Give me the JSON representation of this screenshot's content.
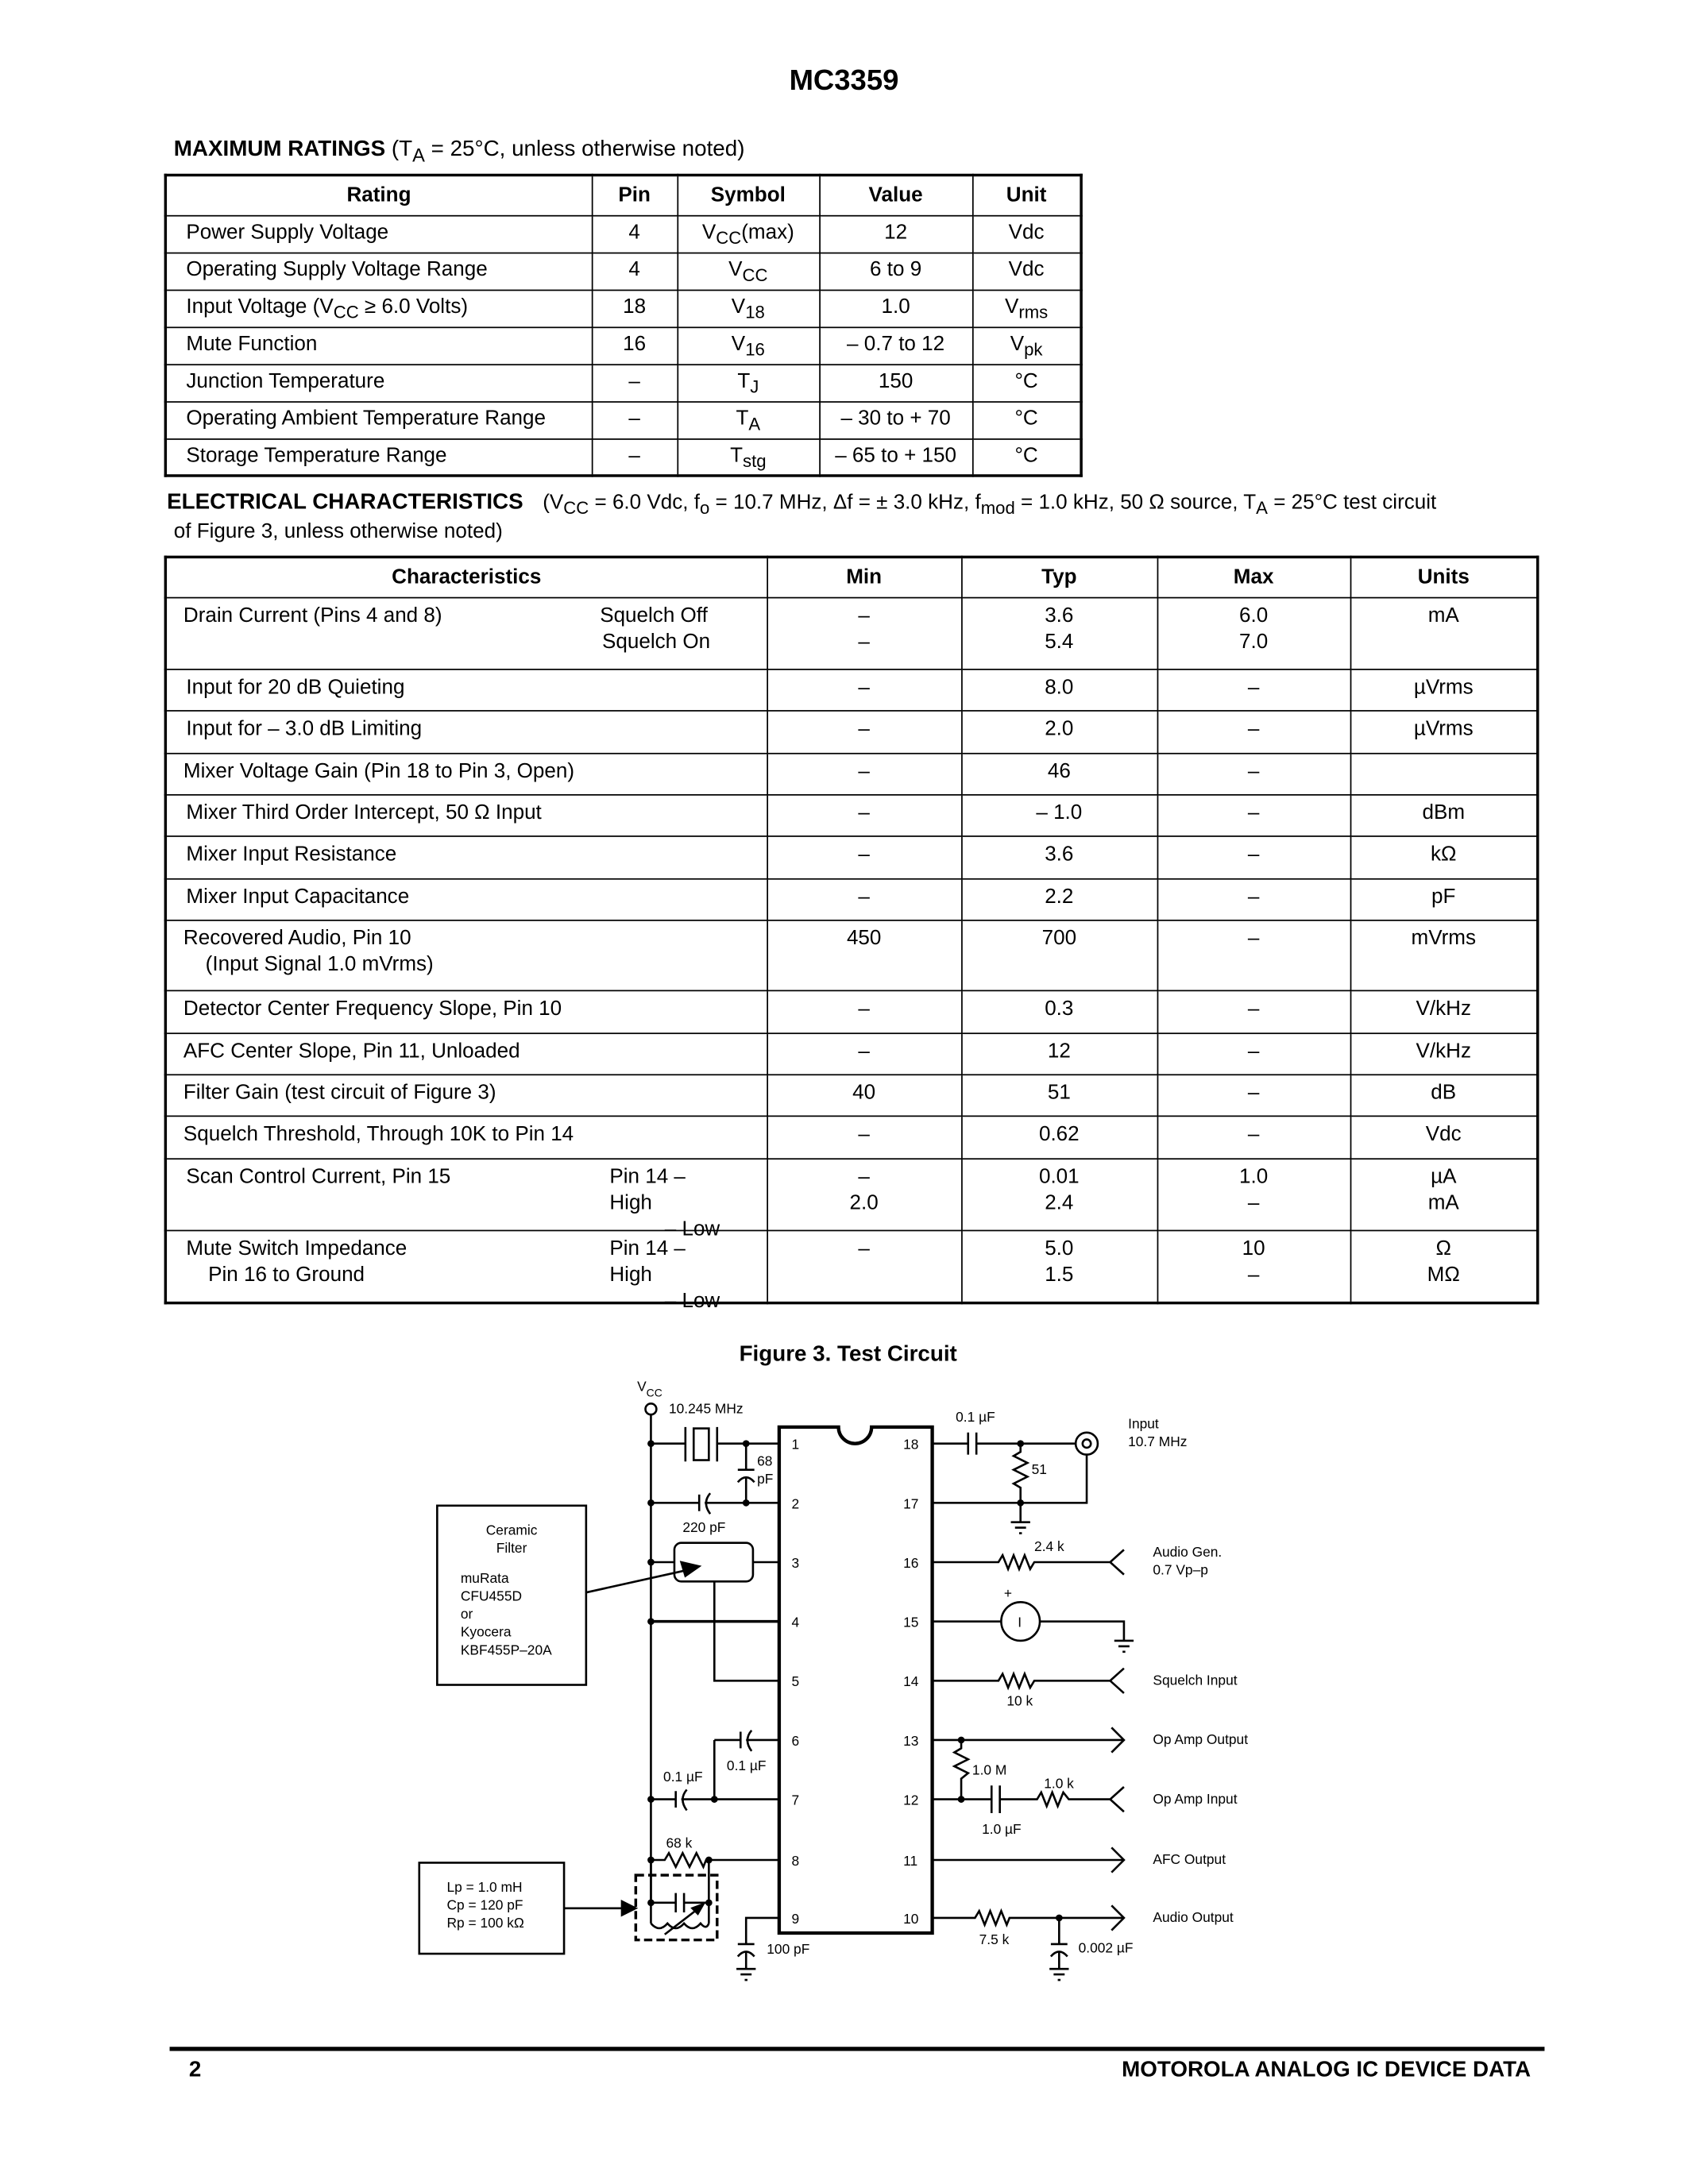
{
  "page_title": "MC3359",
  "max_ratings": {
    "heading": "MAXIMUM RATINGS",
    "cond_pre": "(T",
    "cond_sub": "A",
    "cond_post": " = 25°C, unless otherwise noted)",
    "columns": [
      "Rating",
      "Pin",
      "Symbol",
      "Value",
      "Unit"
    ],
    "rows": [
      {
        "rating": "Power Supply Voltage",
        "pin": "4",
        "sym": "V",
        "sym_sub": "CC",
        "sym_post": "(max)",
        "value": "12",
        "unit": "Vdc",
        "unit_sub": ""
      },
      {
        "rating": "Operating Supply Voltage Range",
        "pin": "4",
        "sym": "V",
        "sym_sub": "CC",
        "sym_post": "",
        "value": "6 to 9",
        "unit": "Vdc",
        "unit_sub": ""
      },
      {
        "rating_pre": "Input Voltage (V",
        "rating_sub": "CC",
        "rating_post": " ≥ 6.0 Volts)",
        "pin": "18",
        "sym": "V",
        "sym_sub": "18",
        "sym_post": "",
        "value": "1.0",
        "unit": "V",
        "unit_sub": "rms"
      },
      {
        "rating": "Mute Function",
        "pin": "16",
        "sym": "V",
        "sym_sub": "16",
        "sym_post": "",
        "value": "– 0.7 to 12",
        "unit": "V",
        "unit_sub": "pk"
      },
      {
        "rating": "Junction Temperature",
        "pin": "–",
        "sym": "T",
        "sym_sub": "J",
        "sym_post": "",
        "value": "150",
        "unit": "°C",
        "unit_sub": ""
      },
      {
        "rating": "Operating Ambient Temperature Range",
        "pin": "–",
        "sym": "T",
        "sym_sub": "A",
        "sym_post": "",
        "value": "– 30 to + 70",
        "unit": "°C",
        "unit_sub": ""
      },
      {
        "rating": "Storage Temperature Range",
        "pin": "–",
        "sym": "T",
        "sym_sub": "stg",
        "sym_post": "",
        "value": "– 65 to + 150",
        "unit": "°C",
        "unit_sub": ""
      }
    ]
  },
  "elec": {
    "heading": "ELECTRICAL CHARACTERISTICS",
    "c1": "(V",
    "c1s": "CC",
    "c2": " = 6.0 Vdc, f",
    "c2s": "o",
    "c3": " = 10.7 MHz, Δf = ± 3.0 kHz, f",
    "c3s": "mod",
    "c4": " = 1.0 kHz, 50 Ω source, T",
    "c4s": "A",
    "c5": " = 25°C test circuit",
    "line2": "of Figure 3, unless otherwise noted)",
    "columns": [
      "Characteristics",
      "Min",
      "Typ",
      "Max",
      "Units"
    ],
    "rows": [
      {
        "name": "Drain Current (Pins 4 and 8)",
        "cond1": "Squelch Off",
        "cond2": "Squelch On",
        "min1": "–",
        "min2": "–",
        "typ1": "3.6",
        "typ2": "5.4",
        "max1": "6.0",
        "max2": "7.0",
        "unit1": "mA",
        "unit2": ""
      },
      {
        "name": "Input for 20 dB Quieting",
        "min1": "–",
        "typ1": "8.0",
        "max1": "–",
        "unit1": "µVrms"
      },
      {
        "name": "Input for – 3.0 dB Limiting",
        "min1": "–",
        "typ1": "2.0",
        "max1": "–",
        "unit1": "µVrms"
      },
      {
        "name": "Mixer Voltage Gain (Pin 18 to Pin 3, Open)",
        "min1": "–",
        "typ1": "46",
        "max1": "–",
        "unit1": ""
      },
      {
        "name": "Mixer Third Order Intercept, 50 Ω Input",
        "min1": "–",
        "typ1": "– 1.0",
        "max1": "–",
        "unit1": "dBm"
      },
      {
        "name": "Mixer Input Resistance",
        "min1": "–",
        "typ1": "3.6",
        "max1": "–",
        "unit1": "kΩ"
      },
      {
        "name": "Mixer Input Capacitance",
        "min1": "–",
        "typ1": "2.2",
        "max1": "–",
        "unit1": "pF"
      },
      {
        "name": "Recovered Audio, Pin 10",
        "name2": "(Input Signal 1.0 mVrms)",
        "min1": "450",
        "typ1": "700",
        "max1": "–",
        "unit1": "mVrms"
      },
      {
        "name": "Detector Center Frequency Slope, Pin 10",
        "min1": "–",
        "typ1": "0.3",
        "max1": "–",
        "unit1": "V/kHz"
      },
      {
        "name": "AFC Center Slope, Pin 11, Unloaded",
        "min1": "–",
        "typ1": "12",
        "max1": "–",
        "unit1": "V/kHz"
      },
      {
        "name": "Filter Gain (test circuit of Figure 3)",
        "min1": "40",
        "typ1": "51",
        "max1": "–",
        "unit1": "dB"
      },
      {
        "name": "Squelch Threshold, Through 10K to Pin 14",
        "min1": "–",
        "typ1": "0.62",
        "max1": "–",
        "unit1": "Vdc"
      },
      {
        "name": "Scan Control Current, Pin 15",
        "cond1": "Pin 14 – High",
        "cond2": "– Low",
        "min1": "–",
        "min2": "2.0",
        "typ1": "0.01",
        "typ2": "2.4",
        "max1": "1.0",
        "max2": "–",
        "unit1": "µA",
        "unit2": "mA"
      },
      {
        "name": "Mute Switch Impedance",
        "name2": "Pin 16 to Ground",
        "cond1": "Pin 14 – High",
        "cond2": "– Low",
        "min1": "–",
        "min2": "",
        "typ1": "5.0",
        "typ2": "1.5",
        "max1": "10",
        "max2": "–",
        "unit1": "Ω",
        "unit2": "MΩ"
      }
    ]
  },
  "figure": {
    "title": "Figure 3. Test Circuit",
    "vcc": "V",
    "vcc_sub": "CC",
    "crystal": "10.245 MHz",
    "c68a": "68",
    "c68b": "pF",
    "c220": "220 pF",
    "ceramic": {
      "l1": "Ceramic",
      "l2": "Filter",
      "l3": "muRata",
      "l4": "CFU455D",
      "l5": "or",
      "l6": "Kyocera",
      "l7": "KBF455P–20A"
    },
    "c6": "0.1 µF",
    "c7": "0.1 µF",
    "r68k": "68 k",
    "lc": {
      "l1": "Lp = 1.0 mH",
      "l2": "Cp = 120 pF",
      "l3": "Rp = 100 kΩ"
    },
    "c100p": "100 pF",
    "left_pins": [
      "1",
      "2",
      "3",
      "4",
      "5",
      "6",
      "7",
      "8",
      "9"
    ],
    "right_pins": [
      "18",
      "17",
      "16",
      "15",
      "14",
      "13",
      "12",
      "11",
      "10"
    ],
    "c18": "0.1 µF",
    "r51": "51",
    "input1": "Input",
    "input2": "10.7 MHz",
    "r24k": "2.4 k",
    "audio_gen1": "Audio Gen.",
    "audio_gen2": "0.7 Vp–p",
    "meter_plus": "+",
    "meter": "I",
    "r10k": "10 k",
    "squelch": "Squelch Input",
    "opamp_out": "Op Amp Output",
    "r1m": "1.0 M",
    "r1k": "1.0 k",
    "c1u": "1.0 µF",
    "opamp_in": "Op Amp Input",
    "afc": "AFC Output",
    "r75k": "7.5 k",
    "c002": "0.002 µF",
    "audio_out": "Audio Output"
  },
  "footer": {
    "page": "2",
    "title": "MOTOROLA ANALOG IC DEVICE DATA"
  }
}
